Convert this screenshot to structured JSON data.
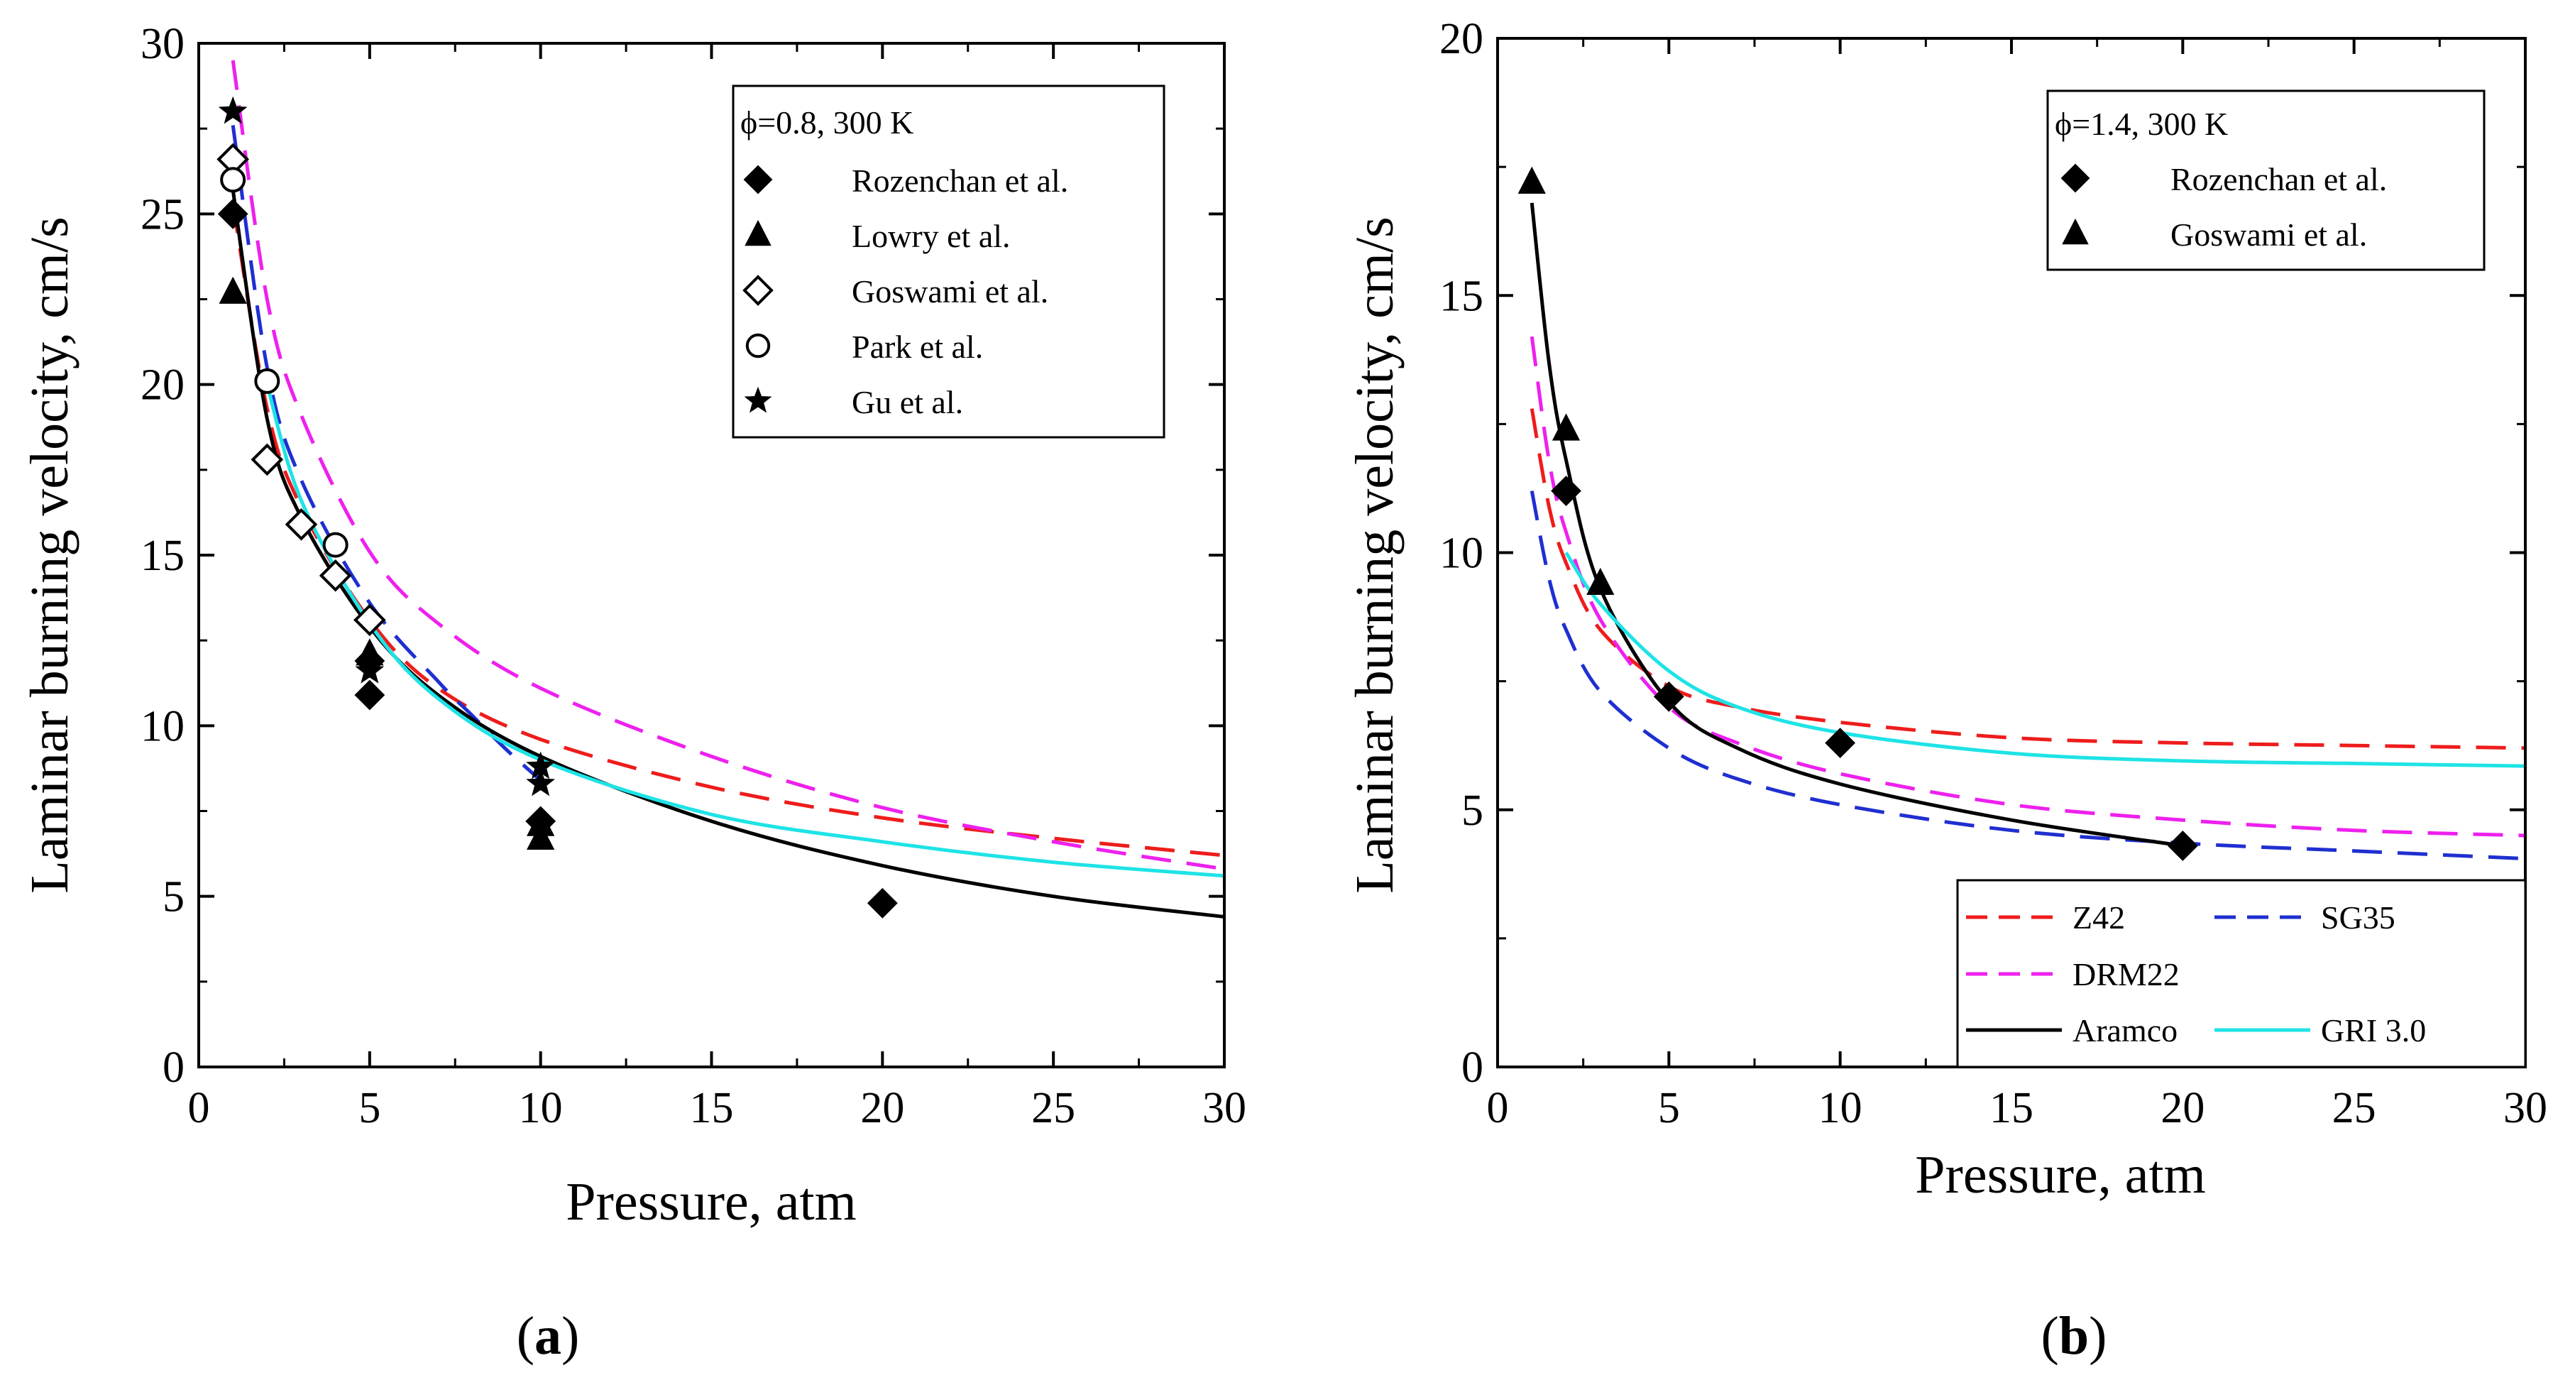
{
  "chart_data": [
    {
      "type": "line",
      "panel_label": "(a)",
      "panel_letter": "a",
      "title": "",
      "xlabel": "Pressure, atm",
      "ylabel": "Laminar burning velocity, cm/s",
      "xlim": [
        0,
        30
      ],
      "ylim": [
        0,
        30
      ],
      "xticks": [
        "0",
        "5",
        "10",
        "15",
        "20",
        "25",
        "30"
      ],
      "yticks": [
        "0",
        "5",
        "10",
        "15",
        "20",
        "25",
        "30"
      ],
      "legend_title": "ϕ=0.8, 300 K",
      "legend_position": "top-right",
      "scatter_series": [
        {
          "name": "Rozenchan et al.",
          "marker": "diamond-filled",
          "x": [
            1,
            5,
            5,
            10,
            20
          ],
          "y": [
            25.0,
            11.9,
            10.9,
            7.2,
            4.8
          ]
        },
        {
          "name": "Lowry et al.",
          "marker": "triangle-filled",
          "x": [
            1,
            5,
            10,
            10
          ],
          "y": [
            22.7,
            12.1,
            7.1,
            6.7
          ]
        },
        {
          "name": "Goswami et al.",
          "marker": "diamond-open",
          "x": [
            1,
            2,
            3,
            4,
            5
          ],
          "y": [
            26.6,
            17.8,
            15.9,
            14.4,
            13.1
          ]
        },
        {
          "name": "Park et al.",
          "marker": "circle-open",
          "x": [
            1,
            2,
            4
          ],
          "y": [
            26.0,
            20.1,
            15.3
          ]
        },
        {
          "name": "Gu et al.",
          "marker": "star",
          "x": [
            1,
            5,
            10,
            10
          ],
          "y": [
            28.0,
            11.6,
            8.8,
            8.3
          ]
        }
      ],
      "model_series": [
        {
          "name": "Z42",
          "color": "#ee1c1c",
          "dash": "dashed",
          "x": [
            1,
            2,
            3,
            5,
            7,
            10,
            15,
            20,
            25,
            30
          ],
          "y": [
            25.3,
            19.3,
            16.4,
            13.1,
            11.1,
            9.6,
            8.2,
            7.3,
            6.7,
            6.2
          ]
        },
        {
          "name": "DRM22",
          "color": "#ee20ee",
          "dash": "dashed",
          "x": [
            1,
            2,
            3,
            5,
            7,
            10,
            15,
            20,
            25,
            30
          ],
          "y": [
            29.5,
            22.5,
            19.1,
            15.1,
            13.0,
            11.1,
            9.1,
            7.6,
            6.6,
            5.8
          ]
        },
        {
          "name": "SG35",
          "color": "#1f2fd0",
          "dash": "dashed",
          "x": [
            1,
            2,
            3,
            5,
            7,
            8,
            9,
            10
          ],
          "y": [
            27.6,
            20.5,
            17.2,
            13.6,
            11.3,
            10.3,
            9.3,
            8.4
          ]
        },
        {
          "name": "Aramco",
          "color": "#000000",
          "dash": "solid",
          "x": [
            1,
            2,
            3,
            5,
            7,
            10,
            15,
            20,
            25,
            30
          ],
          "y": [
            25.7,
            19.0,
            16.1,
            12.9,
            10.9,
            9.1,
            7.2,
            5.9,
            5.0,
            4.4
          ]
        },
        {
          "name": "GRI 3.0",
          "color": "#1ee3e6",
          "dash": "solid",
          "x": [
            2,
            3,
            5,
            7,
            10,
            15,
            20,
            25,
            30
          ],
          "y": [
            20.0,
            16.6,
            13.0,
            10.8,
            9.0,
            7.4,
            6.6,
            6.0,
            5.6
          ]
        }
      ]
    },
    {
      "type": "line",
      "panel_label": "(b)",
      "panel_letter": "b",
      "title": "",
      "xlabel": "Pressure, atm",
      "ylabel": "Laminar burning velocity, cm/s",
      "xlim": [
        0,
        30
      ],
      "ylim": [
        0,
        20
      ],
      "xticks": [
        "0",
        "5",
        "10",
        "15",
        "20",
        "25",
        "30"
      ],
      "yticks": [
        "0",
        "5",
        "10",
        "15",
        "20"
      ],
      "legend_title": "ϕ=1.4, 300 K",
      "legend_position": "top-right",
      "model_legend_position": "bottom-right",
      "scatter_series": [
        {
          "name": "Rozenchan et al.",
          "marker": "diamond-filled",
          "x": [
            2,
            5,
            10,
            20
          ],
          "y": [
            11.2,
            7.2,
            6.3,
            4.3
          ]
        },
        {
          "name": "Goswami et al.",
          "marker": "triangle-filled",
          "x": [
            1,
            2,
            3
          ],
          "y": [
            17.2,
            12.4,
            9.4
          ]
        }
      ],
      "model_series": [
        {
          "name": "Z42",
          "color": "#ee1c1c",
          "dash": "dashed",
          "x": [
            1,
            1.5,
            2,
            3,
            5,
            7,
            10,
            15,
            20,
            25,
            30
          ],
          "y": [
            12.8,
            10.9,
            9.8,
            8.5,
            7.4,
            7.0,
            6.7,
            6.4,
            6.3,
            6.25,
            6.2
          ]
        },
        {
          "name": "SG35",
          "color": "#1f2fd0",
          "dash": "dashed",
          "x": [
            1,
            1.5,
            2,
            3,
            5,
            7,
            10,
            15,
            20,
            25,
            30
          ],
          "y": [
            11.2,
            9.5,
            8.5,
            7.3,
            6.2,
            5.6,
            5.1,
            4.6,
            4.35,
            4.2,
            4.05
          ]
        },
        {
          "name": "DRM22",
          "color": "#ee20ee",
          "dash": "dashed",
          "x": [
            1,
            1.5,
            2,
            3,
            5,
            7,
            10,
            15,
            20,
            25,
            30
          ],
          "y": [
            14.2,
            11.8,
            10.4,
            8.7,
            7.0,
            6.3,
            5.7,
            5.1,
            4.8,
            4.6,
            4.5
          ]
        },
        {
          "name": "Aramco",
          "color": "#000000",
          "dash": "solid",
          "x": [
            1,
            1.5,
            2,
            3,
            5,
            7,
            10,
            15,
            20
          ],
          "y": [
            16.8,
            13.7,
            11.8,
            9.3,
            7.1,
            6.2,
            5.5,
            4.8,
            4.3
          ]
        },
        {
          "name": "GRI 3.0",
          "color": "#1ee3e6",
          "dash": "solid",
          "x": [
            2,
            3,
            5,
            7,
            10,
            15,
            20,
            25,
            30
          ],
          "y": [
            10.0,
            9.0,
            7.7,
            7.0,
            6.5,
            6.1,
            5.95,
            5.9,
            5.85
          ]
        }
      ]
    }
  ]
}
